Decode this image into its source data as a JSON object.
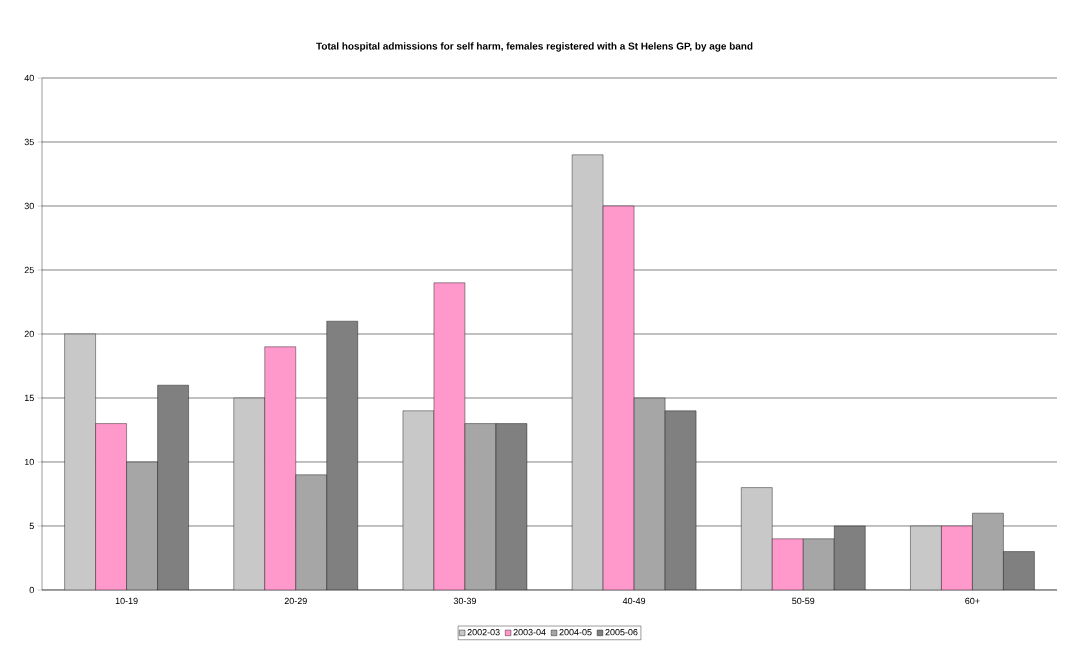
{
  "chart_data": {
    "type": "bar",
    "title": "**Total hospital admissions for self harm, females registered with a St Helens GP,  by age band**",
    "categories": [
      "10-19",
      "20-29",
      "30-39",
      "40-49",
      "50-59",
      "60+"
    ],
    "series": [
      {
        "name": "2002-03",
        "color": "#c8c8c8",
        "values": [
          20,
          15,
          14,
          34,
          8,
          5
        ]
      },
      {
        "name": "2003-04",
        "color": "#ff99cc",
        "values": [
          13,
          19,
          24,
          30,
          4,
          5
        ]
      },
      {
        "name": "2004-05",
        "color": "#a6a6a6",
        "values": [
          10,
          9,
          13,
          15,
          4,
          6
        ]
      },
      {
        "name": "2005-06",
        "color": "#808080",
        "values": [
          16,
          21,
          13,
          14,
          5,
          3
        ]
      }
    ],
    "ylim": [
      0,
      40
    ],
    "yticks": [
      0,
      5,
      10,
      15,
      20,
      25,
      30,
      35,
      40
    ],
    "grid": "y",
    "legend": "bottom"
  }
}
